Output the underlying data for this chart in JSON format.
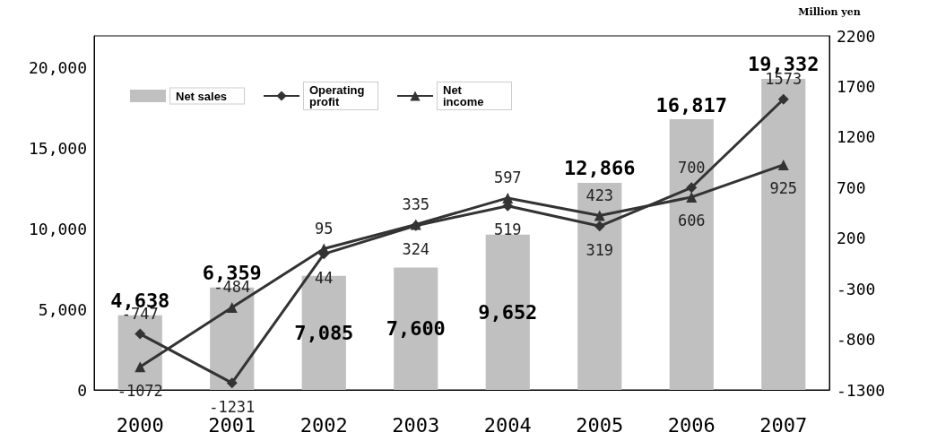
{
  "chart_data": {
    "type": "bar",
    "categories": [
      "2000",
      "2001",
      "2002",
      "2003",
      "2004",
      "2005",
      "2006",
      "2007"
    ],
    "y2label": "Million yen",
    "ylim": [
      0,
      22000
    ],
    "yticks": [
      0,
      {
        "value": 5000,
        "label": "5,000"
      },
      {
        "value": 10000,
        "label": "10,000"
      },
      {
        "value": 15000,
        "label": "15,000"
      },
      {
        "value": 20000,
        "label": "20,000"
      }
    ],
    "y2lim": [
      -1300,
      2200
    ],
    "y2ticks": [
      -1300,
      -800,
      -300,
      200,
      700,
      1200,
      1700,
      2200
    ],
    "series": [
      {
        "name": "Net sales",
        "color": "#c0c0c0",
        "values": [
          4638,
          6359,
          7085,
          7600,
          9652,
          12866,
          16817,
          19332
        ],
        "value_labels": [
          "4,638",
          "6,359",
          "7,085",
          "7,600",
          "9,652",
          "12,866",
          "16,817",
          "19,332"
        ]
      },
      {
        "name": "Operating profit",
        "type": "line",
        "axis": "y2",
        "marker": "diamond",
        "color": "#333333",
        "values": [
          -747,
          -1231,
          44,
          324,
          519,
          319,
          700,
          1573
        ]
      },
      {
        "name": "Net income",
        "type": "line",
        "axis": "y2",
        "marker": "triangle",
        "color": "#333333",
        "values": [
          -1072,
          -484,
          95,
          335,
          597,
          423,
          606,
          925
        ]
      }
    ],
    "data_labels": true,
    "grid": false,
    "legend": "top left",
    "line_style": "solid"
  }
}
